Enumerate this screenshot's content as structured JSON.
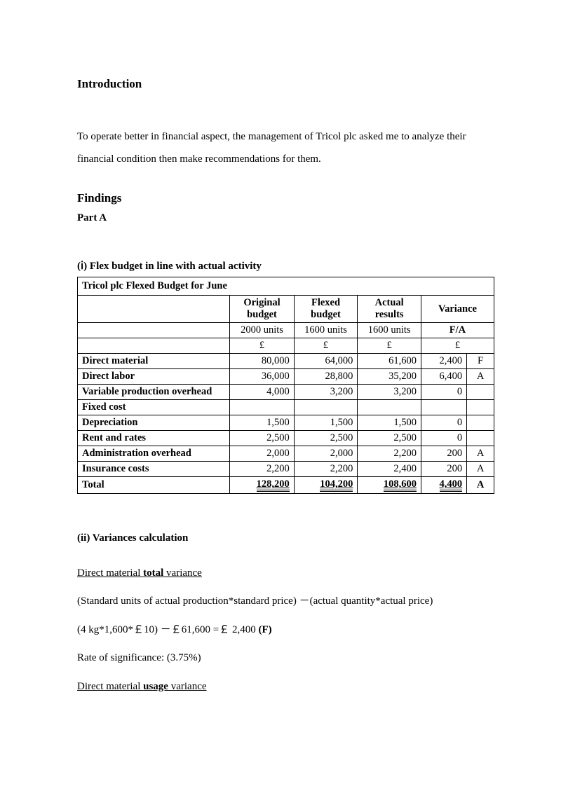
{
  "intro": {
    "heading": "Introduction",
    "text": "To operate better in financial aspect, the management of Tricol plc asked me to analyze their financial condition then make recommendations for them."
  },
  "findings": {
    "heading": "Findings",
    "part_label": "Part A"
  },
  "section_i": {
    "title_prefix": "(ⅰ) ",
    "title": "Flex budget in line with actual activity"
  },
  "table": {
    "title": "Tricol plc Flexed Budget for June",
    "cols": {
      "original": "Original budget",
      "flexed": "Flexed budget",
      "actual": "Actual results",
      "variance": "Variance"
    },
    "units": {
      "original": "2000 units",
      "flexed": "1600 units",
      "actual": "1600 units",
      "variance": "F/A"
    },
    "currency": "£",
    "rows": [
      {
        "label": "Direct material",
        "original": "80,000",
        "flexed": "64,000",
        "actual": "61,600",
        "var": "2,400",
        "fa": "F"
      },
      {
        "label": "Direct labor",
        "original": "36,000",
        "flexed": "28,800",
        "actual": "35,200",
        "var": "6,400",
        "fa": "A"
      },
      {
        "label": "Variable production overhead",
        "original": "4,000",
        "flexed": "3,200",
        "actual": "3,200",
        "var": "0",
        "fa": ""
      },
      {
        "label": "Fixed cost",
        "original": "",
        "flexed": "",
        "actual": "",
        "var": "",
        "fa": ""
      },
      {
        "label": "Depreciation",
        "original": "1,500",
        "flexed": "1,500",
        "actual": "1,500",
        "var": "0",
        "fa": ""
      },
      {
        "label": "Rent and rates",
        "original": "2,500",
        "flexed": "2,500",
        "actual": "2,500",
        "var": "0",
        "fa": ""
      },
      {
        "label": "Administration overhead",
        "original": "2,000",
        "flexed": "2,000",
        "actual": "2,200",
        "var": "200",
        "fa": "A"
      },
      {
        "label": "Insurance costs",
        "original": "2,200",
        "flexed": "2,200",
        "actual": "2,400",
        "var": "200",
        "fa": "A"
      }
    ],
    "total": {
      "label": "Total",
      "original": "128,200",
      "flexed": "104,200",
      "actual": "108,600",
      "var": "4,400",
      "fa": "A"
    }
  },
  "section_ii": {
    "heading": "(ii) Variances calculation"
  },
  "calc": {
    "dm_total_prefix": "Direct material ",
    "dm_total_bold": "total",
    "dm_total_suffix": " variance",
    "formula1": "(Standard units of actual production*standard price) －(actual quantity*actual price)",
    "formula2_a": "(4 kg*1,600*￡10) －￡61,600 =￡ 2,400 ",
    "formula2_b": "(F)",
    "rate": "Rate of significance: (3.75%)",
    "dm_usage_prefix": "Direct material ",
    "dm_usage_bold": "usage",
    "dm_usage_suffix": " variance"
  },
  "style": {
    "background_color": "#ffffff",
    "text_color": "#000000",
    "font_family": "Times New Roman",
    "body_fontsize": 15,
    "heading_fontsize": 17
  }
}
